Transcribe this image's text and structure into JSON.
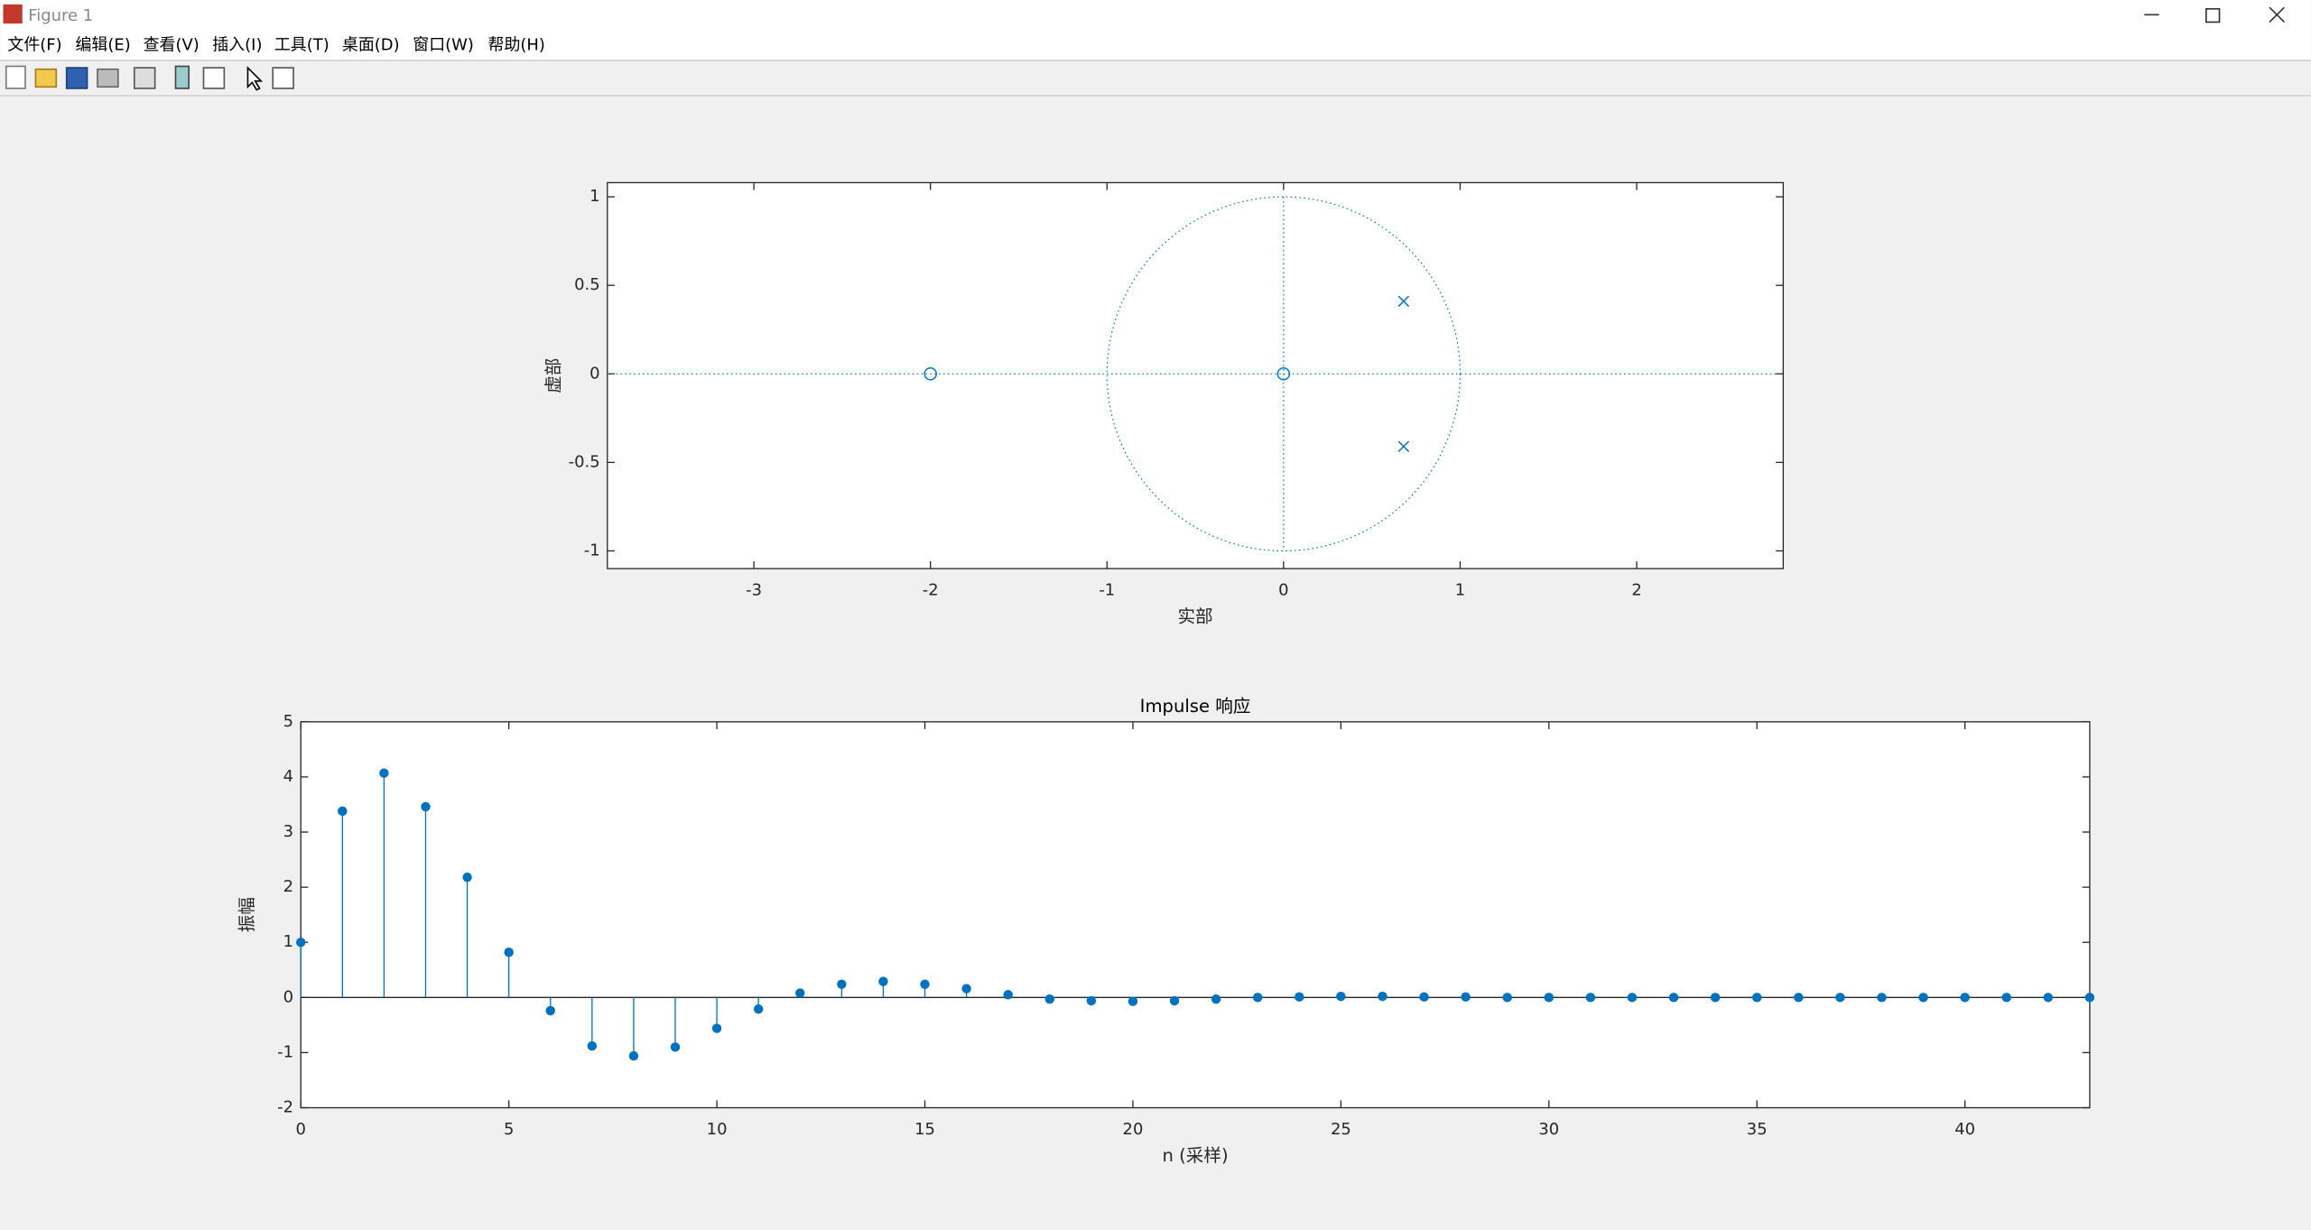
{
  "window": {
    "title": "Figure 1",
    "menu": [
      "文件(F)",
      "编辑(E)",
      "查看(V)",
      "插入(I)",
      "工具(T)",
      "桌面(D)",
      "窗口(W)",
      "帮助(H)"
    ]
  },
  "chart_data": [
    {
      "type": "pzmap",
      "xlabel": "实部",
      "ylabel": "虚部",
      "color": "#0072bd",
      "zeros": {
        "real": [
          -2,
          0
        ],
        "imag": [
          0,
          0
        ]
      },
      "poles": {
        "real": [
          0.68,
          0.68
        ],
        "imag": [
          0.41,
          -0.41
        ]
      },
      "xlim": [
        -3.83,
        2.83
      ],
      "ylim": [
        -1.1,
        1.08
      ],
      "xticks": [
        -3,
        -2,
        -1,
        0,
        1,
        2
      ],
      "yticks": [
        -1,
        -0.5,
        0,
        0.5,
        1
      ]
    },
    {
      "type": "stem",
      "title": "Impulse 响应",
      "xlabel": "n (采样)",
      "ylabel": "振幅",
      "color": "#0072bd",
      "x": [
        0,
        1,
        2,
        3,
        4,
        5,
        6,
        7,
        8,
        9,
        10,
        11,
        12,
        13,
        14,
        15,
        16,
        17,
        18,
        19,
        20,
        21,
        22,
        23,
        24,
        25,
        26,
        27,
        28,
        29,
        30,
        31,
        32,
        33,
        34,
        35,
        36,
        37,
        38,
        39,
        40,
        41,
        42,
        43
      ],
      "values": [
        1,
        3.38,
        4.07,
        3.46,
        2.18,
        0.82,
        -0.24,
        -0.88,
        -1.06,
        -0.9,
        -0.56,
        -0.21,
        0.08,
        0.24,
        0.29,
        0.24,
        0.16,
        0.05,
        -0.03,
        -0.06,
        -0.07,
        -0.06,
        -0.03,
        0,
        0.01,
        0.02,
        0.02,
        0.01,
        0.01,
        0,
        0,
        0,
        0,
        0,
        0,
        0,
        0,
        0,
        0,
        0,
        0,
        0,
        0,
        0
      ],
      "xlim": [
        0,
        43
      ],
      "ylim": [
        -2,
        5
      ],
      "xticks": [
        0,
        5,
        10,
        15,
        20,
        25,
        30,
        35,
        40
      ],
      "yticks": [
        -2,
        -1,
        0,
        1,
        2,
        3,
        4,
        5
      ]
    }
  ]
}
